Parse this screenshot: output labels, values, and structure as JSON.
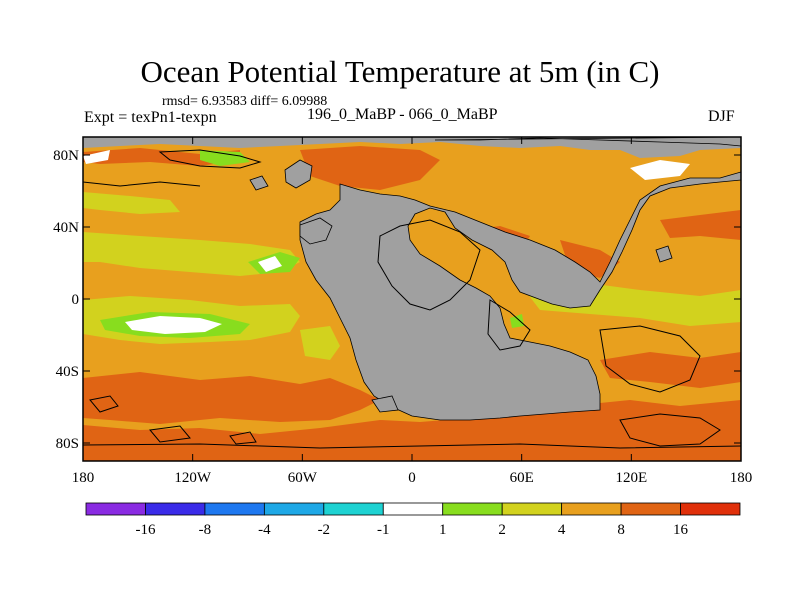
{
  "title": "Ocean Potential Temperature at 5m (in C)",
  "stats": "rmsd= 6.93583 diff= 6.09988",
  "experiment": "Expt = texPn1-texpn",
  "subtitle": "196_0_MaBP - 066_0_MaBP",
  "season": "DJF",
  "map": {
    "lon_range": [
      -180,
      180
    ],
    "lat_range": [
      -90,
      90
    ],
    "x_ticks": [
      {
        "value": -180,
        "label": "180"
      },
      {
        "value": -120,
        "label": "120W"
      },
      {
        "value": -60,
        "label": "60W"
      },
      {
        "value": 0,
        "label": "0"
      },
      {
        "value": 60,
        "label": "60E"
      },
      {
        "value": 120,
        "label": "120E"
      },
      {
        "value": 180,
        "label": "180"
      }
    ],
    "y_ticks": [
      {
        "value": 80,
        "label": "80N"
      },
      {
        "value": 40,
        "label": "40N"
      },
      {
        "value": 0,
        "label": "0"
      },
      {
        "value": -40,
        "label": "40S"
      },
      {
        "value": -80,
        "label": "80S"
      }
    ],
    "land_color": "#a0a0a0"
  },
  "colorbar": {
    "colors": [
      "#8a2be2",
      "#3a2be8",
      "#1e78f0",
      "#1ea8e6",
      "#1ed2d2",
      "#ffffff",
      "#88dd1e",
      "#d2d21e",
      "#e8a01e",
      "#e06414",
      "#e0300a"
    ],
    "labels": [
      "-16",
      "-8",
      "-4",
      "-2",
      "-1",
      "1",
      "2",
      "4",
      "8",
      "16"
    ]
  }
}
